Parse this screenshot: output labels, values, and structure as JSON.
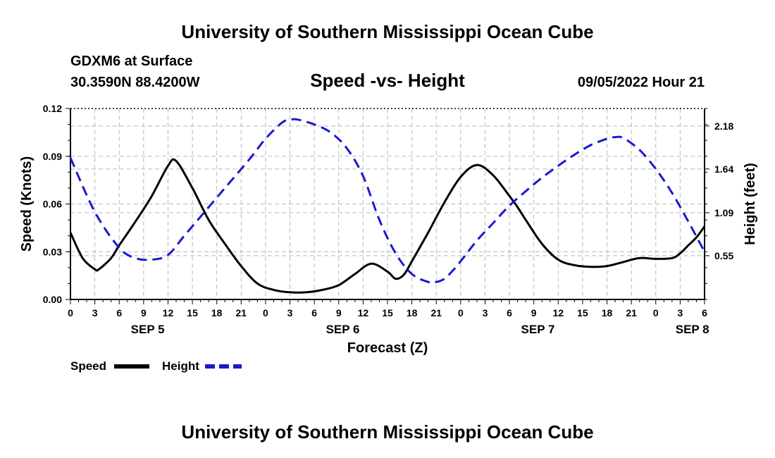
{
  "header": {
    "title": "University of Southern Mississippi Ocean Cube",
    "station": "GDXM6 at Surface",
    "coords": "30.3590N  88.4200W",
    "subtitle": "Speed -vs- Height",
    "datetime": "09/05/2022 Hour 21",
    "footer_title": "University of Southern Mississippi Ocean Cube"
  },
  "chart_data": {
    "type": "line",
    "title": "Speed -vs- Height",
    "xlabel": "Forecast (Z)",
    "ylabel": "Speed (Knots)",
    "y2label": "Height (feet)",
    "xlim": [
      0,
      78
    ],
    "ylim": [
      0,
      0.12
    ],
    "y2lim": [
      0,
      2.4
    ],
    "x_tick_labels": [
      "0",
      "3",
      "6",
      "9",
      "12",
      "15",
      "18",
      "21",
      "0",
      "3",
      "6",
      "9",
      "12",
      "15",
      "18",
      "21",
      "0",
      "3",
      "6",
      "9",
      "12",
      "15",
      "18",
      "21",
      "0",
      "3",
      "6"
    ],
    "y_ticks": [
      "0.00",
      "0.03",
      "0.06",
      "0.09",
      "0.12"
    ],
    "y2_ticks": [
      "0.55",
      "1.09",
      "1.64",
      "2.18"
    ],
    "day_labels": [
      {
        "label": "SEP 5",
        "hour": 9.5
      },
      {
        "label": "SEP 6",
        "hour": 33.5
      },
      {
        "label": "SEP 7",
        "hour": 57.5
      },
      {
        "label": "SEP 8",
        "hour": 76.5
      }
    ],
    "grid": true,
    "series": [
      {
        "name": "Speed",
        "color": "#000000",
        "style": "solid",
        "axis": "left",
        "x": [
          0,
          1.5,
          3,
          3.5,
          5,
          6,
          8,
          10,
          12,
          13,
          15,
          17,
          19,
          21,
          23,
          25,
          27,
          29,
          31,
          33,
          35,
          37,
          39,
          40,
          41,
          42,
          43,
          44,
          46,
          48,
          50,
          52,
          54,
          55,
          56,
          58,
          60,
          62,
          64,
          66,
          68,
          70,
          72,
          74,
          75,
          76,
          77,
          78
        ],
        "values": [
          0.042,
          0.026,
          0.019,
          0.019,
          0.026,
          0.034,
          0.049,
          0.065,
          0.084,
          0.087,
          0.07,
          0.05,
          0.035,
          0.021,
          0.01,
          0.006,
          0.0045,
          0.0045,
          0.006,
          0.009,
          0.016,
          0.0225,
          0.0175,
          0.013,
          0.0155,
          0.024,
          0.033,
          0.042,
          0.061,
          0.077,
          0.0845,
          0.078,
          0.065,
          0.058,
          0.05,
          0.035,
          0.025,
          0.0215,
          0.0205,
          0.021,
          0.0235,
          0.026,
          0.0255,
          0.026,
          0.029,
          0.034,
          0.039,
          0.046
        ]
      },
      {
        "name": "Height",
        "color": "#1a1acc",
        "style": "dashed",
        "axis": "right",
        "x": [
          0,
          3,
          6,
          8,
          10,
          12,
          14,
          16,
          19,
          22,
          24,
          26,
          27,
          28,
          30,
          32,
          34,
          36,
          38,
          40,
          42,
          44,
          45,
          46,
          47,
          48,
          50,
          52,
          54,
          56,
          58,
          60,
          62,
          64,
          66,
          67,
          68,
          70,
          72,
          74,
          76,
          78
        ],
        "values": [
          1.78,
          1.1,
          0.65,
          0.52,
          0.5,
          0.56,
          0.8,
          1.04,
          1.4,
          1.76,
          2.02,
          2.22,
          2.26,
          2.26,
          2.2,
          2.1,
          1.9,
          1.55,
          1.0,
          0.58,
          0.32,
          0.22,
          0.22,
          0.26,
          0.36,
          0.48,
          0.74,
          0.96,
          1.18,
          1.36,
          1.53,
          1.68,
          1.82,
          1.94,
          2.02,
          2.04,
          2.03,
          1.88,
          1.64,
          1.34,
          0.98,
          0.6
        ]
      }
    ]
  }
}
